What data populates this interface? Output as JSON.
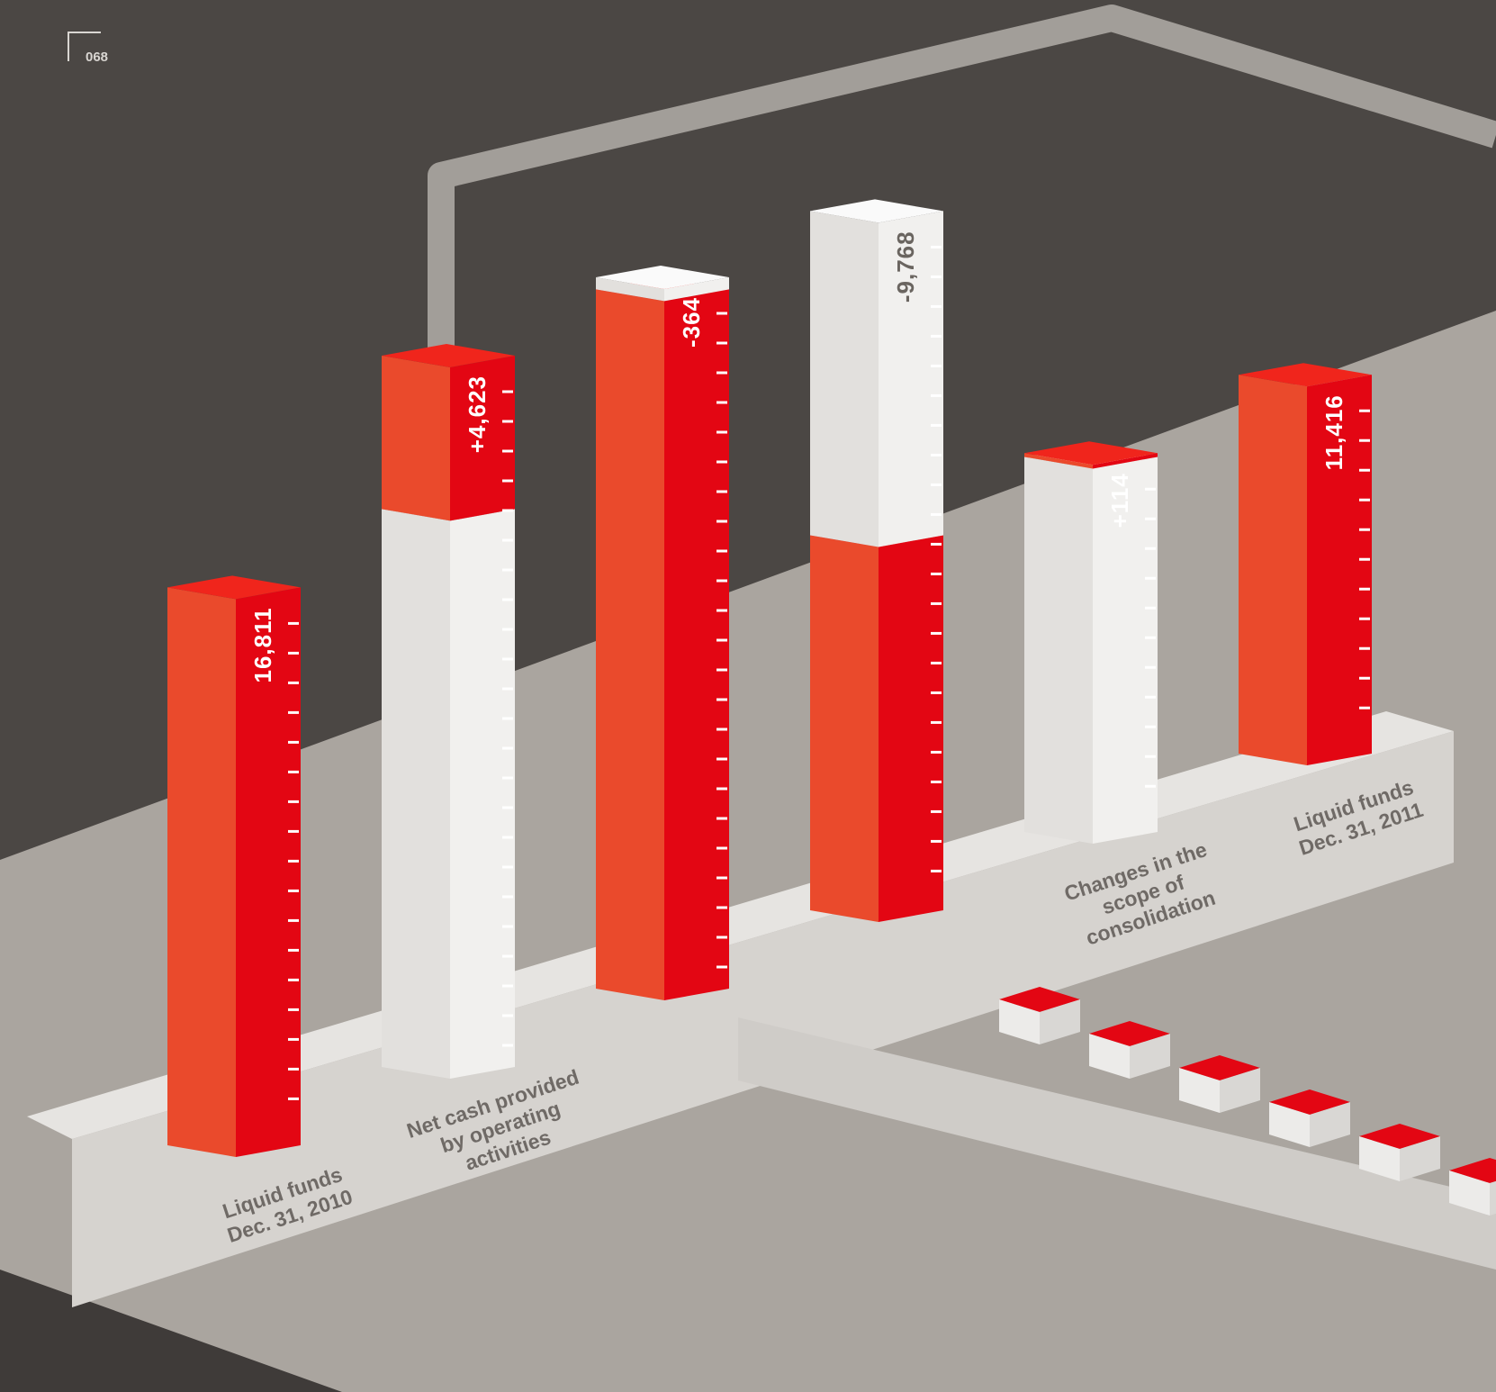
{
  "page_number": "068",
  "chart_data": {
    "type": "waterfall",
    "categories": [
      "Liquid funds Dec. 31, 2010",
      "Net cash provided by operating activities",
      null,
      null,
      "Changes in the scope of consolidation",
      "Liquid funds Dec. 31, 2011"
    ],
    "values": [
      16811,
      4623,
      -364,
      -9768,
      114,
      11416
    ],
    "value_labels": [
      "16,811",
      "+4,623",
      "-364",
      "-9,768",
      "+114",
      "11,416"
    ],
    "color": "#e30613"
  }
}
